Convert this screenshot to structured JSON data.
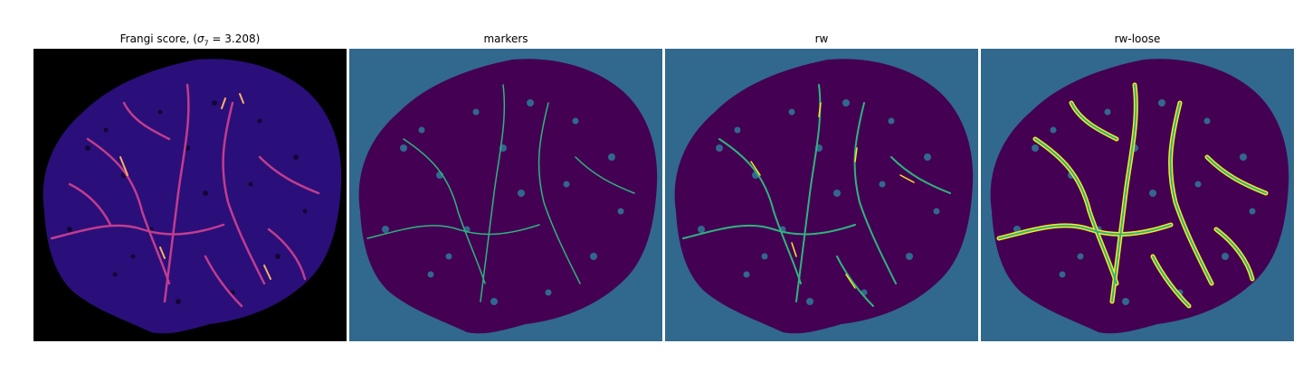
{
  "panels": [
    {
      "id": "frangi",
      "title_prefix": "Frangi score, (",
      "title_sigma": "σ",
      "title_sub": "7",
      "title_suffix": " = 3.208)",
      "colormap": "magma",
      "background": "#000000"
    },
    {
      "id": "markers",
      "title": "markers",
      "colormap": "viridis",
      "background": "#31688e"
    },
    {
      "id": "rw",
      "title": "rw",
      "colormap": "viridis",
      "background": "#31688e"
    },
    {
      "id": "rw-loose",
      "title": "rw-loose",
      "colormap": "viridis",
      "background": "#31688e"
    }
  ],
  "colors": {
    "magma_bg": "#000000",
    "magma_tissue": "#2a0f7a",
    "magma_mid": "#5a1aa0",
    "magma_vessel": "#c23c8e",
    "magma_peak": "#fcae68",
    "viridis_bg": "#31688e",
    "viridis_dark": "#440154",
    "viridis_mid": "#2fb47c",
    "viridis_high": "#fde725"
  }
}
